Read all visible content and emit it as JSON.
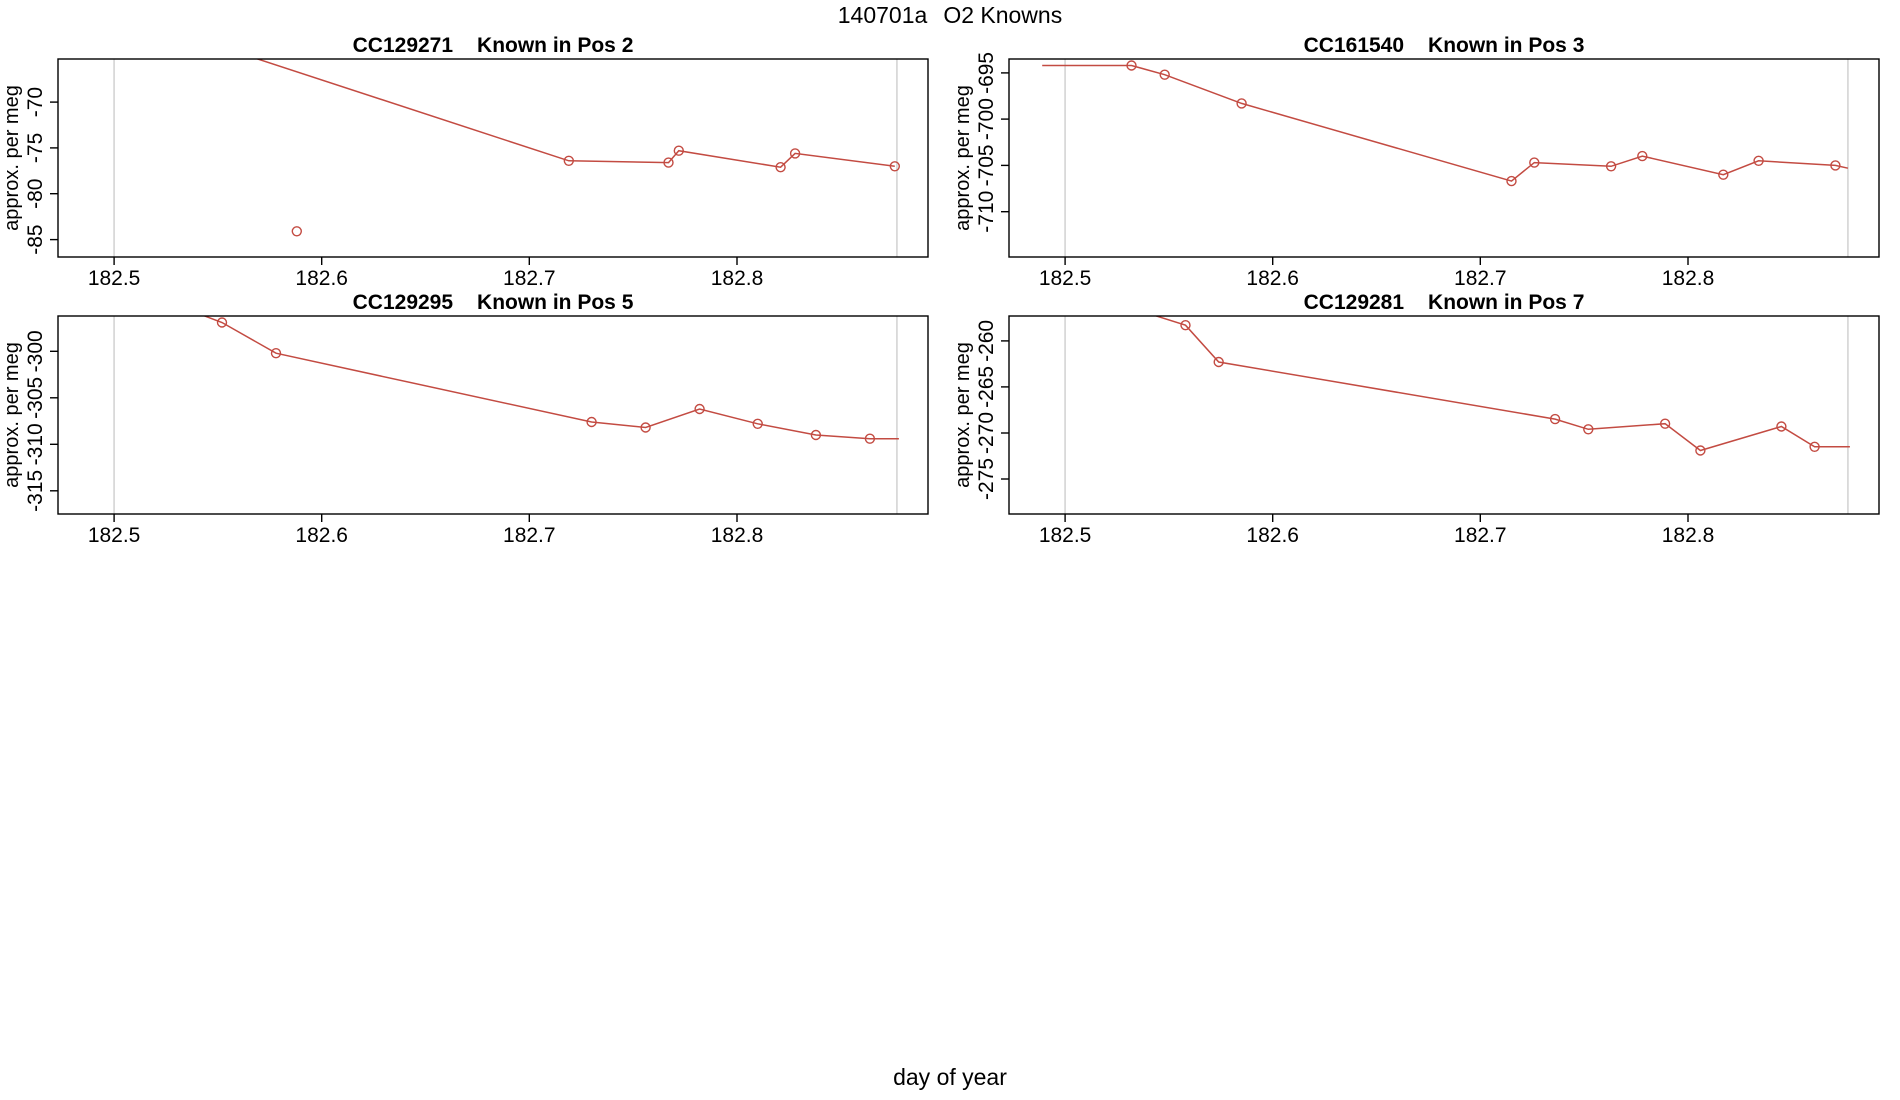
{
  "header": {
    "run_id": "140701a",
    "title": "O2 Knowns"
  },
  "footer": {
    "xlabel": "day of year"
  },
  "style": {
    "line_color": "#c34b42",
    "vline_color": "#d9d9d9",
    "fg_color": "#000000",
    "bg_color": "#ffffff"
  },
  "chart_data": [
    {
      "type": "line",
      "title_code": "CC129271",
      "title_pos": "Known in Pos 2",
      "ylabel": "approx. per meg",
      "xlim": [
        182.473,
        182.892
      ],
      "ylim": [
        -86.9,
        -65.3
      ],
      "xticks": [
        182.5,
        182.6,
        182.7,
        182.8
      ],
      "xtick_labels": [
        "182.5",
        "182.6",
        "182.7",
        "182.8"
      ],
      "yticks": [
        -70,
        -75,
        -80,
        -85
      ],
      "ytick_labels": [
        "-70",
        "-75",
        "-80",
        "-85"
      ],
      "vlines": [
        182.5,
        182.877
      ],
      "points": [
        {
          "x": 182.53,
          "y": -62.4,
          "marker": false
        },
        {
          "x": 182.719,
          "y": -76.4,
          "marker": true
        },
        {
          "x": 182.767,
          "y": -76.6,
          "marker": true
        },
        {
          "x": 182.772,
          "y": -75.3,
          "marker": true
        },
        {
          "x": 182.821,
          "y": -77.1,
          "marker": true
        },
        {
          "x": 182.828,
          "y": -75.6,
          "marker": true
        },
        {
          "x": 182.876,
          "y": -77.0,
          "marker": true
        }
      ],
      "lone_points": [
        {
          "x": 182.588,
          "y": -84.1
        }
      ]
    },
    {
      "type": "line",
      "title_code": "CC161540",
      "title_pos": "Known in Pos 3",
      "ylabel": "approx. per meg",
      "xlim": [
        182.473,
        182.892
      ],
      "ylim": [
        -714.9,
        -693.5
      ],
      "xticks": [
        182.5,
        182.6,
        182.7,
        182.8
      ],
      "xtick_labels": [
        "182.5",
        "182.6",
        "182.7",
        "182.8"
      ],
      "yticks": [
        -695,
        -700,
        -705,
        -710
      ],
      "ytick_labels": [
        "-695",
        "-700",
        "-705",
        "-710"
      ],
      "vlines": [
        182.5,
        182.877
      ],
      "points": [
        {
          "x": 182.489,
          "y": -694.2,
          "marker": false
        },
        {
          "x": 182.532,
          "y": -694.2,
          "marker": true
        },
        {
          "x": 182.548,
          "y": -695.2,
          "marker": true
        },
        {
          "x": 182.585,
          "y": -698.3,
          "marker": true
        },
        {
          "x": 182.715,
          "y": -706.7,
          "marker": true
        },
        {
          "x": 182.726,
          "y": -704.7,
          "marker": true
        },
        {
          "x": 182.763,
          "y": -705.1,
          "marker": true
        },
        {
          "x": 182.778,
          "y": -704.0,
          "marker": true
        },
        {
          "x": 182.817,
          "y": -706.0,
          "marker": true
        },
        {
          "x": 182.834,
          "y": -704.5,
          "marker": true
        },
        {
          "x": 182.871,
          "y": -705.0,
          "marker": true
        },
        {
          "x": 182.877,
          "y": -705.3,
          "marker": false
        }
      ],
      "lone_points": []
    },
    {
      "type": "line",
      "title_code": "CC129295",
      "title_pos": "Known in Pos 5",
      "ylabel": "approx. per meg",
      "xlim": [
        182.473,
        182.892
      ],
      "ylim": [
        -317.5,
        -296.2
      ],
      "xticks": [
        182.5,
        182.6,
        182.7,
        182.8
      ],
      "xtick_labels": [
        "182.5",
        "182.6",
        "182.7",
        "182.8"
      ],
      "yticks": [
        -300,
        -305,
        -310,
        -315
      ],
      "ytick_labels": [
        "-300",
        "-305",
        "-310",
        "-315"
      ],
      "vlines": [
        182.5,
        182.877
      ],
      "points": [
        {
          "x": 182.52,
          "y": -294.2,
          "marker": false
        },
        {
          "x": 182.552,
          "y": -296.9,
          "marker": true
        },
        {
          "x": 182.578,
          "y": -300.2,
          "marker": true
        },
        {
          "x": 182.73,
          "y": -307.6,
          "marker": true
        },
        {
          "x": 182.756,
          "y": -308.2,
          "marker": true
        },
        {
          "x": 182.782,
          "y": -306.2,
          "marker": true
        },
        {
          "x": 182.81,
          "y": -307.8,
          "marker": true
        },
        {
          "x": 182.838,
          "y": -309.0,
          "marker": true
        },
        {
          "x": 182.864,
          "y": -309.4,
          "marker": true
        },
        {
          "x": 182.878,
          "y": -309.4,
          "marker": false
        }
      ],
      "lone_points": []
    },
    {
      "type": "line",
      "title_code": "CC129281",
      "title_pos": "Known in Pos 7",
      "ylabel": "approx. per meg",
      "xlim": [
        182.473,
        182.892
      ],
      "ylim": [
        -278.8,
        -257.3
      ],
      "xticks": [
        182.5,
        182.6,
        182.7,
        182.8
      ],
      "xtick_labels": [
        "182.5",
        "182.6",
        "182.7",
        "182.8"
      ],
      "yticks": [
        -260,
        -265,
        -270,
        -275
      ],
      "ytick_labels": [
        "-260",
        "-265",
        "-270",
        "-275"
      ],
      "vlines": [
        182.5,
        182.877
      ],
      "points": [
        {
          "x": 182.53,
          "y": -256.3,
          "marker": false
        },
        {
          "x": 182.558,
          "y": -258.3,
          "marker": true
        },
        {
          "x": 182.574,
          "y": -262.3,
          "marker": true
        },
        {
          "x": 182.736,
          "y": -268.5,
          "marker": true
        },
        {
          "x": 182.752,
          "y": -269.6,
          "marker": true
        },
        {
          "x": 182.789,
          "y": -269.0,
          "marker": true
        },
        {
          "x": 182.806,
          "y": -271.9,
          "marker": true
        },
        {
          "x": 182.845,
          "y": -269.3,
          "marker": true
        },
        {
          "x": 182.861,
          "y": -271.5,
          "marker": true
        },
        {
          "x": 182.878,
          "y": -271.5,
          "marker": false
        }
      ],
      "lone_points": []
    }
  ]
}
